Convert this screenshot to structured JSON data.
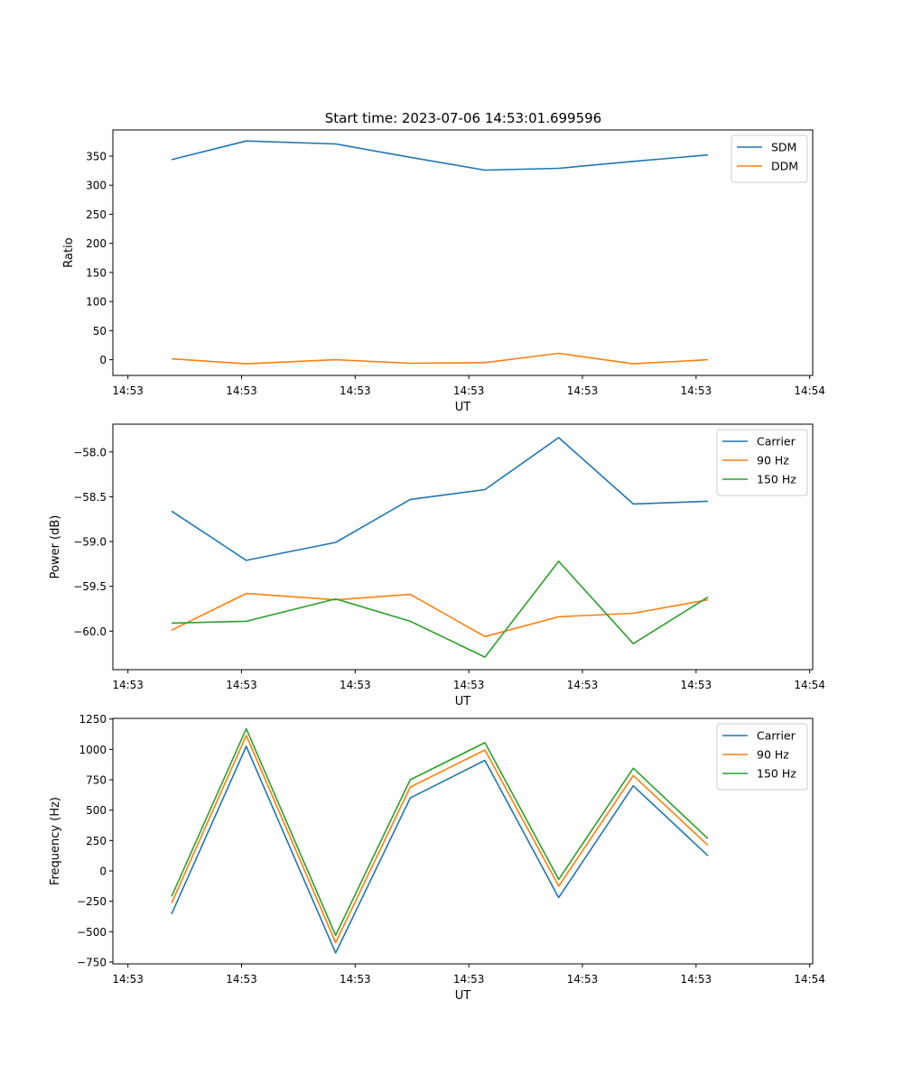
{
  "title": "Start time: 2023-07-06 14:53:01.699596",
  "colors": {
    "blue": "#1f77b4",
    "orange": "#ff7f0e",
    "green": "#2ca02c"
  },
  "chart_data": [
    {
      "type": "line",
      "id": "ratio",
      "title": "Start time: 2023-07-06 14:53:01.699596",
      "xlabel": "UT",
      "ylabel": "Ratio",
      "xlim": [
        -0.1,
        4.55
      ],
      "ylim": [
        -27,
        395
      ],
      "x": [
        0.29,
        0.786,
        1.38,
        1.876,
        2.372,
        2.862,
        3.358,
        3.854
      ],
      "xticks": [
        0,
        0.755,
        1.51,
        2.265,
        3.02,
        3.775,
        4.53
      ],
      "xtick_labels": [
        "14:53",
        "14:53",
        "14:53",
        "14:53",
        "14:53",
        "14:53",
        "14:54"
      ],
      "yticks": [
        0,
        50,
        100,
        150,
        200,
        250,
        300,
        350
      ],
      "ytick_labels": [
        "0",
        "50",
        "100",
        "150",
        "200",
        "250",
        "300",
        "350"
      ],
      "legend_position": "top-right",
      "series": [
        {
          "name": "SDM",
          "color": "#1f77b4",
          "values": [
            344,
            376,
            371,
            348,
            326,
            329,
            341,
            352
          ]
        },
        {
          "name": "DDM",
          "color": "#ff7f0e",
          "values": [
            1.5,
            -7,
            0,
            -6,
            -5,
            11,
            -7,
            0
          ]
        }
      ]
    },
    {
      "type": "line",
      "id": "power",
      "xlabel": "UT",
      "ylabel": "Power (dB)",
      "xlim": [
        -0.1,
        4.55
      ],
      "ylim": [
        -60.43,
        -57.69
      ],
      "x": [
        0.29,
        0.786,
        1.38,
        1.876,
        2.372,
        2.862,
        3.358,
        3.854
      ],
      "xticks": [
        0,
        0.755,
        1.51,
        2.265,
        3.02,
        3.775,
        4.53
      ],
      "xtick_labels": [
        "14:53",
        "14:53",
        "14:53",
        "14:53",
        "14:53",
        "14:53",
        "14:54"
      ],
      "yticks": [
        -60.0,
        -59.5,
        -59.0,
        -58.5,
        -58.0
      ],
      "ytick_labels": [
        "−60.0",
        "−59.5",
        "−59.0",
        "−58.5",
        "−58.0"
      ],
      "legend_position": "top-right",
      "series": [
        {
          "name": "Carrier",
          "color": "#1f77b4",
          "values": [
            -58.66,
            -59.21,
            -59.01,
            -58.53,
            -58.42,
            -57.84,
            -58.58,
            -58.55
          ]
        },
        {
          "name": "90 Hz",
          "color": "#ff7f0e",
          "values": [
            -59.99,
            -59.58,
            -59.65,
            -59.59,
            -60.06,
            -59.84,
            -59.8,
            -59.65
          ]
        },
        {
          "name": "150 Hz",
          "color": "#2ca02c",
          "values": [
            -59.91,
            -59.89,
            -59.64,
            -59.89,
            -60.29,
            -59.22,
            -60.14,
            -59.62
          ]
        }
      ]
    },
    {
      "type": "line",
      "id": "frequency",
      "xlabel": "UT",
      "ylabel": "Frequency (Hz)",
      "xlim": [
        -0.1,
        4.55
      ],
      "ylim": [
        -765,
        1255
      ],
      "x": [
        0.29,
        0.786,
        1.38,
        1.876,
        2.372,
        2.862,
        3.358,
        3.854
      ],
      "xticks": [
        0,
        0.755,
        1.51,
        2.265,
        3.02,
        3.775,
        4.53
      ],
      "xtick_labels": [
        "14:53",
        "14:53",
        "14:53",
        "14:53",
        "14:53",
        "14:53",
        "14:54"
      ],
      "yticks": [
        -750,
        -500,
        -250,
        0,
        250,
        500,
        750,
        1000,
        1250
      ],
      "ytick_labels": [
        "−750",
        "−500",
        "−250",
        "0",
        "250",
        "500",
        "750",
        "1000",
        "1250"
      ],
      "legend_position": "top-right",
      "series": [
        {
          "name": "Carrier",
          "color": "#1f77b4",
          "values": [
            -355,
            1025,
            -675,
            600,
            910,
            -220,
            700,
            125
          ]
        },
        {
          "name": "90 Hz",
          "color": "#ff7f0e",
          "values": [
            -265,
            1115,
            -590,
            690,
            995,
            -125,
            785,
            210
          ]
        },
        {
          "name": "150 Hz",
          "color": "#2ca02c",
          "values": [
            -210,
            1170,
            -530,
            750,
            1055,
            -70,
            845,
            265
          ]
        }
      ]
    }
  ]
}
